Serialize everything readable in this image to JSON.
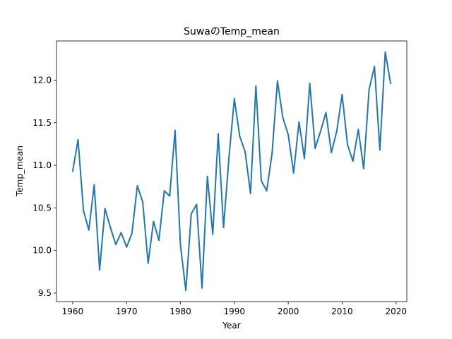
{
  "chart_data": {
    "type": "line",
    "title": "SuwaのTemp_mean",
    "xlabel": "Year",
    "ylabel": "Temp_mean",
    "xlim": [
      1957,
      2022
    ],
    "ylim": [
      9.4,
      12.46
    ],
    "xticks": [
      1960,
      1970,
      1980,
      1990,
      2000,
      2010,
      2020
    ],
    "yticks": [
      9.5,
      10.0,
      10.5,
      11.0,
      11.5,
      12.0
    ],
    "ytick_labels": [
      "9.5",
      "10.0",
      "10.5",
      "11.0",
      "11.5",
      "12.0"
    ],
    "grid": false,
    "series": [
      {
        "color": "#1f77b4",
        "x": [
          1960,
          1961,
          1962,
          1963,
          1964,
          1965,
          1966,
          1967,
          1968,
          1969,
          1970,
          1971,
          1972,
          1973,
          1974,
          1975,
          1976,
          1977,
          1978,
          1979,
          1980,
          1981,
          1982,
          1983,
          1984,
          1985,
          1986,
          1987,
          1988,
          1989,
          1990,
          1991,
          1992,
          1993,
          1994,
          1995,
          1996,
          1997,
          1998,
          1999,
          2000,
          2001,
          2002,
          2003,
          2004,
          2005,
          2006,
          2007,
          2008,
          2009,
          2010,
          2011,
          2012,
          2013,
          2014,
          2015,
          2016,
          2017,
          2018,
          2019
        ],
        "y": [
          10.93,
          11.3,
          10.47,
          10.24,
          10.77,
          9.77,
          10.49,
          10.27,
          10.07,
          10.21,
          10.04,
          10.2,
          10.76,
          10.57,
          9.85,
          10.34,
          10.12,
          10.7,
          10.64,
          11.41,
          10.06,
          9.53,
          10.43,
          10.54,
          9.56,
          10.87,
          10.19,
          11.37,
          10.27,
          11.09,
          11.78,
          11.34,
          11.16,
          10.67,
          11.93,
          10.82,
          10.7,
          11.14,
          11.99,
          11.56,
          11.36,
          10.91,
          11.51,
          11.08,
          11.96,
          11.2,
          11.4,
          11.62,
          11.15,
          11.4,
          11.83,
          11.24,
          11.05,
          11.42,
          10.96,
          11.89,
          12.16,
          11.18,
          12.33,
          11.96
        ]
      }
    ]
  }
}
